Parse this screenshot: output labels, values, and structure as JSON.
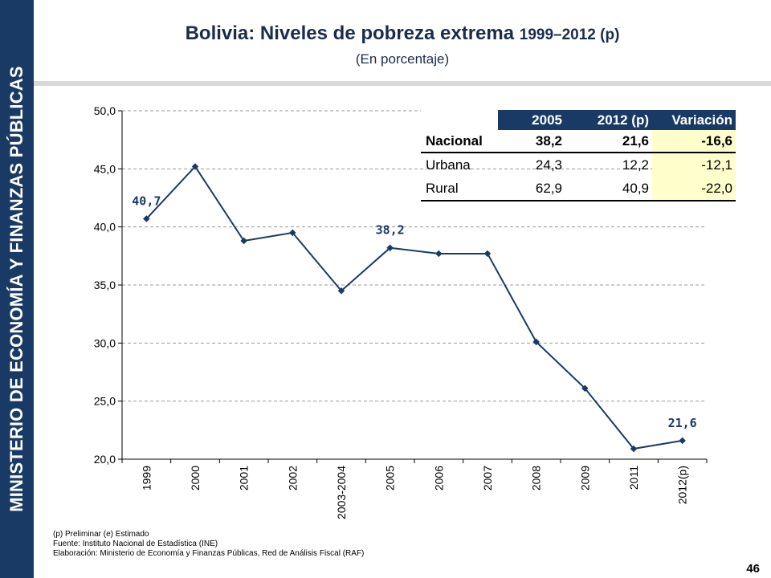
{
  "sidebar": {
    "label": "MINISTERIO DE ECONOMÍA Y FINANZAS PÚBLICAS"
  },
  "header": {
    "title_main": "Bolivia: Niveles de pobreza extrema ",
    "title_years": "1999–2012 (p)",
    "subtitle": "(En porcentaje)"
  },
  "chart_data": {
    "type": "line",
    "categories": [
      "1999",
      "2000",
      "2001",
      "2002",
      "2003-2004",
      "2005",
      "2006",
      "2007",
      "2008",
      "2009",
      "2011",
      "2012(p)"
    ],
    "values": [
      40.7,
      45.2,
      38.8,
      39.5,
      34.5,
      38.2,
      37.7,
      37.7,
      30.1,
      26.1,
      20.9,
      21.6
    ],
    "ylim": [
      20,
      50
    ],
    "yticks": [
      "20,0",
      "25,0",
      "30,0",
      "35,0",
      "40,0",
      "45,0",
      "50,0"
    ],
    "grid": true,
    "color": "#1a3a66",
    "point_labels": [
      {
        "index": 0,
        "text": "40,7"
      },
      {
        "index": 5,
        "text": "38,2"
      },
      {
        "index": 11,
        "text": "21,6"
      }
    ]
  },
  "table": {
    "headers": [
      "",
      "2005",
      "2012 (p)",
      "Variación"
    ],
    "rows": [
      {
        "label": "Nacional",
        "v2005": "38,2",
        "v2012": "21,6",
        "variation": "-16,6"
      },
      {
        "label": "Urbana",
        "v2005": "24,3",
        "v2012": "12,2",
        "variation": "-12,1"
      },
      {
        "label": "Rural",
        "v2005": "62,9",
        "v2012": "40,9",
        "variation": "-22,0"
      }
    ]
  },
  "footnotes": {
    "note": "(p) Preliminar (e) Estimado",
    "source": "Fuente: Instituto Nacional de Estadística (INE)",
    "elaboration": "Elaboración: Ministerio de Economía y Finanzas Públicas, Red de Análisis Fiscal (RAF)"
  },
  "page_number": "46"
}
